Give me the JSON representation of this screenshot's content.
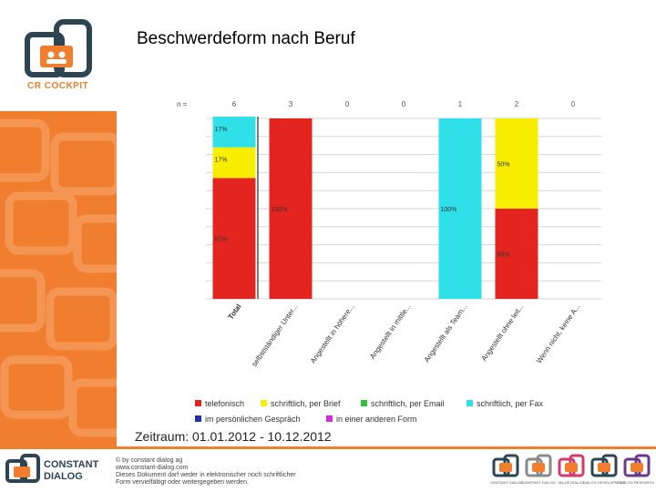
{
  "brand": {
    "name": "CR COCKPIT",
    "company_line1": "CONSTANT",
    "company_line2": "DIALOG",
    "colors": {
      "orange": "#f07e2e",
      "dark": "#2d4453"
    }
  },
  "page": {
    "title": "Beschwerdeform nach Beruf",
    "period": "Zeitraum: 01.01.2012 - 10.12.2012"
  },
  "footer": {
    "lines": [
      "© by constant dialog ag",
      "www.constant-dialog.com",
      "Dieses Dokument darf weder in elektronischer noch schriftlicher",
      "Form vervielfältigt oder weitergegeben werden."
    ],
    "badges": [
      "CONSTANT DIALOG",
      "CONSTANT DIALOG",
      "VALUE DIALOG",
      "DIALOG DEVELOPMENT",
      "DIALOG RESEARCH"
    ]
  },
  "chart_data": {
    "type": "bar",
    "stacked": true,
    "n_label": "n =",
    "categories": [
      "Total",
      "selbstständiger Unter...",
      "Angestellt in höhere...",
      "Angestellt in mittle...",
      "Angestellt als Team...",
      "Angestellt ohne leit...",
      "Wenn nicht, keine A..."
    ],
    "n": [
      6,
      3,
      0,
      0,
      1,
      2,
      0
    ],
    "ylim": [
      0,
      100
    ],
    "grid": true,
    "legend_position": "bottom",
    "series": [
      {
        "name": "telefonisch",
        "color": "#e4251f",
        "values": [
          67,
          100,
          0,
          0,
          0,
          50,
          0
        ]
      },
      {
        "name": "schriftlich, per Brief",
        "color": "#f7ee00",
        "values": [
          17,
          0,
          0,
          0,
          0,
          50,
          0
        ]
      },
      {
        "name": "schriftlich, per Email",
        "color": "#2fc23a",
        "values": [
          0,
          0,
          0,
          0,
          0,
          0,
          0
        ]
      },
      {
        "name": "schriftlich, per Fax",
        "color": "#2fe0e8",
        "values": [
          17,
          0,
          0,
          0,
          100,
          0,
          0
        ]
      },
      {
        "name": "im persönlichen Gespräch",
        "color": "#1f2fb0",
        "values": [
          0,
          0,
          0,
          0,
          0,
          0,
          0
        ]
      },
      {
        "name": "in einer anderen Form",
        "color": "#d62ad6",
        "values": [
          0,
          0,
          0,
          0,
          0,
          0,
          0
        ]
      }
    ]
  }
}
